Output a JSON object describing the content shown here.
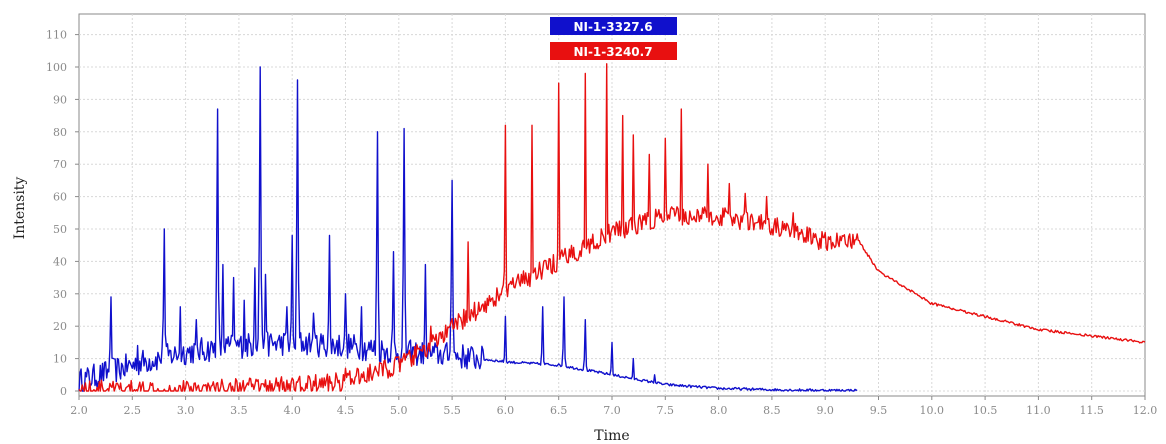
{
  "chart_data": {
    "type": "line",
    "title": "",
    "xlabel": "Time",
    "ylabel": "Intensity",
    "xlim": [
      2.0,
      12.0
    ],
    "ylim": [
      0,
      115
    ],
    "x_ticks": [
      2.0,
      2.5,
      3.0,
      3.5,
      4.0,
      4.5,
      5.0,
      5.5,
      6.0,
      6.5,
      7.0,
      7.5,
      8.0,
      8.5,
      9.0,
      9.5,
      10.0,
      10.5,
      11.0,
      11.5,
      12.0
    ],
    "x_tick_labels": [
      "2.0",
      "2.5",
      "3.0",
      "3.5",
      "4.0",
      "4.5",
      "5.0",
      "5.5",
      "6.0",
      "6.5",
      "7.0",
      "7.5",
      "8.0",
      "8.5",
      "9.0",
      "9.5",
      "10.0",
      "10.5",
      "11.0",
      "11.5",
      "12.0"
    ],
    "y_ticks": [
      0,
      10,
      20,
      30,
      40,
      50,
      60,
      70,
      80,
      90,
      100,
      110
    ],
    "y_tick_labels": [
      "0",
      "10",
      "20",
      "30",
      "40",
      "50",
      "60",
      "70",
      "80",
      "90",
      "100",
      "110"
    ],
    "grid": true,
    "legend_position": "top-center",
    "series": [
      {
        "name": "NI-1-3327.6",
        "color": "#1010cc",
        "baseline": [
          [
            2.0,
            3
          ],
          [
            2.3,
            6
          ],
          [
            2.6,
            9
          ],
          [
            3.0,
            12
          ],
          [
            3.5,
            14
          ],
          [
            4.0,
            15
          ],
          [
            4.5,
            14
          ],
          [
            5.0,
            12
          ],
          [
            5.5,
            11
          ],
          [
            6.0,
            9
          ],
          [
            6.5,
            8
          ],
          [
            7.0,
            5
          ],
          [
            7.5,
            2
          ],
          [
            8.0,
            0.8
          ],
          [
            8.5,
            0.4
          ],
          [
            9.0,
            0.2
          ],
          [
            9.3,
            0.2
          ]
        ],
        "noise": 4,
        "noise_end": 5.8,
        "peaks": [
          [
            2.3,
            29
          ],
          [
            2.55,
            14
          ],
          [
            2.8,
            50
          ],
          [
            2.95,
            26
          ],
          [
            3.1,
            22
          ],
          [
            3.3,
            87
          ],
          [
            3.35,
            39
          ],
          [
            3.45,
            35
          ],
          [
            3.55,
            28
          ],
          [
            3.65,
            38
          ],
          [
            3.7,
            100
          ],
          [
            3.75,
            36
          ],
          [
            3.95,
            26
          ],
          [
            4.0,
            48
          ],
          [
            4.05,
            96
          ],
          [
            4.2,
            24
          ],
          [
            4.35,
            48
          ],
          [
            4.5,
            30
          ],
          [
            4.65,
            26
          ],
          [
            4.8,
            80
          ],
          [
            4.95,
            43
          ],
          [
            5.05,
            81
          ],
          [
            5.25,
            39
          ],
          [
            5.5,
            65
          ],
          [
            5.7,
            12
          ],
          [
            6.0,
            23
          ],
          [
            6.35,
            26
          ],
          [
            6.55,
            29
          ],
          [
            6.75,
            22
          ],
          [
            7.0,
            15
          ],
          [
            7.2,
            10
          ],
          [
            7.4,
            5
          ]
        ]
      },
      {
        "name": "NI-1-3240.7",
        "color": "#e81010",
        "baseline": [
          [
            2.0,
            0.3
          ],
          [
            3.0,
            0.5
          ],
          [
            4.0,
            1.5
          ],
          [
            4.5,
            3
          ],
          [
            5.0,
            8
          ],
          [
            5.3,
            14
          ],
          [
            5.6,
            22
          ],
          [
            6.0,
            31
          ],
          [
            6.5,
            40
          ],
          [
            7.0,
            49
          ],
          [
            7.5,
            54
          ],
          [
            8.0,
            54
          ],
          [
            8.5,
            51
          ],
          [
            9.0,
            46
          ],
          [
            9.3,
            47
          ],
          [
            9.5,
            37
          ],
          [
            10.0,
            27
          ],
          [
            10.5,
            23
          ],
          [
            11.0,
            19
          ],
          [
            11.5,
            17
          ],
          [
            12.0,
            15
          ]
        ],
        "noise": 3,
        "noise_end": 9.3,
        "peaks": [
          [
            3.85,
            4
          ],
          [
            4.5,
            7
          ],
          [
            5.3,
            20
          ],
          [
            5.65,
            46
          ],
          [
            6.0,
            82
          ],
          [
            6.25,
            82
          ],
          [
            6.5,
            95
          ],
          [
            6.75,
            98
          ],
          [
            6.95,
            101
          ],
          [
            7.1,
            85
          ],
          [
            7.2,
            79
          ],
          [
            7.35,
            73
          ],
          [
            7.5,
            78
          ],
          [
            7.65,
            87
          ],
          [
            7.9,
            70
          ],
          [
            8.1,
            64
          ],
          [
            8.25,
            61
          ],
          [
            8.45,
            60
          ],
          [
            8.7,
            55
          ]
        ]
      }
    ]
  }
}
